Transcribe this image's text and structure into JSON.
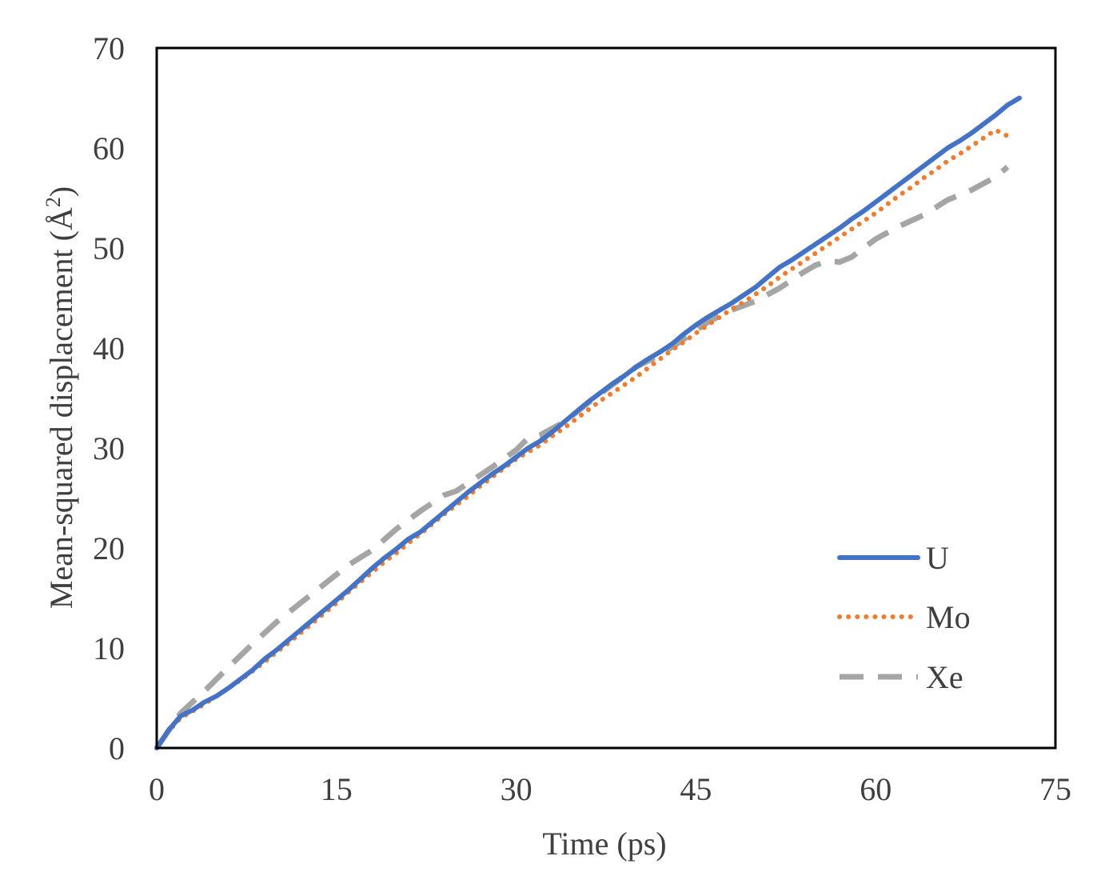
{
  "chart_data": {
    "type": "line",
    "title": "",
    "xlabel": "Time (ps)",
    "ylabel_main": "Mean-squared displacement (Å",
    "ylabel_sup": "2",
    "ylabel_end": ")",
    "xlim": [
      0,
      75
    ],
    "ylim": [
      0,
      70
    ],
    "xticks": [
      0,
      15,
      30,
      45,
      60,
      75
    ],
    "yticks": [
      0,
      10,
      20,
      30,
      40,
      50,
      60,
      70
    ],
    "grid": false,
    "legend_position": "bottom-right",
    "series": [
      {
        "name": "U",
        "color": "#4472C4",
        "style": "solid",
        "x": [
          0,
          1,
          2,
          3,
          4,
          5,
          6,
          7,
          8,
          9,
          10,
          11,
          12,
          13,
          14,
          15,
          16,
          17,
          18,
          19,
          20,
          21,
          22,
          23,
          24,
          25,
          26,
          27,
          28,
          29,
          30,
          31,
          32,
          33,
          34,
          35,
          36,
          37,
          38,
          39,
          40,
          41,
          42,
          43,
          44,
          45,
          46,
          47,
          48,
          49,
          50,
          51,
          52,
          53,
          54,
          55,
          56,
          57,
          58,
          59,
          60,
          61,
          62,
          63,
          64,
          65,
          66,
          67,
          68,
          69,
          70,
          71,
          72
        ],
        "y": [
          0,
          1.8,
          3.2,
          3.8,
          4.6,
          5.2,
          6.0,
          6.9,
          7.8,
          8.9,
          9.8,
          10.8,
          11.8,
          12.8,
          13.8,
          14.8,
          15.8,
          16.9,
          18.0,
          19.0,
          19.9,
          20.9,
          21.6,
          22.6,
          23.6,
          24.6,
          25.6,
          26.5,
          27.4,
          28.2,
          29.1,
          30.0,
          30.7,
          31.6,
          32.6,
          33.6,
          34.6,
          35.5,
          36.4,
          37.2,
          38.1,
          38.9,
          39.6,
          40.4,
          41.4,
          42.3,
          43.1,
          43.8,
          44.5,
          45.3,
          46.1,
          47.1,
          48.1,
          48.8,
          49.6,
          50.4,
          51.2,
          52.0,
          52.9,
          53.7,
          54.6,
          55.5,
          56.4,
          57.3,
          58.2,
          59.1,
          60.0,
          60.7,
          61.5,
          62.4,
          63.3,
          64.3,
          65.0
        ]
      },
      {
        "name": "Mo",
        "color": "#ED7D31",
        "style": "dotted",
        "x": [
          0,
          1,
          2,
          3,
          4,
          5,
          6,
          7,
          8,
          9,
          10,
          11,
          12,
          13,
          14,
          15,
          16,
          17,
          18,
          19,
          20,
          21,
          22,
          23,
          24,
          25,
          26,
          27,
          28,
          29,
          30,
          31,
          32,
          33,
          34,
          35,
          36,
          37,
          38,
          39,
          40,
          41,
          42,
          43,
          44,
          45,
          46,
          47,
          48,
          49,
          50,
          51,
          52,
          53,
          54,
          55,
          56,
          57,
          58,
          59,
          60,
          61,
          62,
          63,
          64,
          65,
          66,
          67,
          68,
          69,
          70,
          71
        ],
        "y": [
          0,
          1.7,
          3.0,
          3.7,
          4.4,
          5.2,
          6.0,
          6.8,
          7.7,
          8.6,
          9.6,
          10.5,
          11.5,
          12.5,
          13.5,
          14.5,
          15.6,
          16.6,
          17.6,
          18.6,
          19.5,
          20.5,
          21.4,
          22.4,
          23.4,
          24.3,
          25.2,
          26.2,
          27.1,
          28.0,
          28.9,
          29.6,
          30.3,
          31.2,
          32.0,
          32.9,
          33.8,
          34.7,
          35.5,
          36.3,
          37.1,
          38.0,
          38.9,
          39.8,
          40.6,
          41.5,
          42.3,
          43.1,
          43.9,
          44.6,
          45.4,
          46.2,
          47.1,
          47.9,
          48.7,
          49.5,
          50.3,
          51.1,
          51.9,
          52.7,
          53.5,
          54.4,
          55.3,
          56.1,
          57.0,
          57.8,
          58.7,
          59.4,
          60.2,
          61.0,
          61.8,
          61.2
        ]
      },
      {
        "name": "Xe",
        "color": "#A5A5A5",
        "style": "dashed",
        "x": [
          0,
          2,
          4,
          6,
          8,
          10,
          12,
          14,
          16,
          18,
          20,
          22,
          24,
          25,
          26,
          28,
          30,
          31,
          32,
          34,
          36,
          38,
          40,
          42,
          44,
          46,
          48,
          50,
          52,
          54,
          55,
          56,
          57,
          58,
          60,
          62,
          64,
          66,
          68,
          70,
          71
        ],
        "y": [
          0,
          3.5,
          5.7,
          8.1,
          10.4,
          12.6,
          14.5,
          16.4,
          18.3,
          19.8,
          21.9,
          23.7,
          25.3,
          25.7,
          26.5,
          28.1,
          29.8,
          31.0,
          31.3,
          32.6,
          34.5,
          36.3,
          38.1,
          39.3,
          40.9,
          42.6,
          43.8,
          44.7,
          46.0,
          47.6,
          48.3,
          48.7,
          48.6,
          49.1,
          50.9,
          52.2,
          53.3,
          54.8,
          55.8,
          57.1,
          58.1
        ]
      }
    ]
  }
}
